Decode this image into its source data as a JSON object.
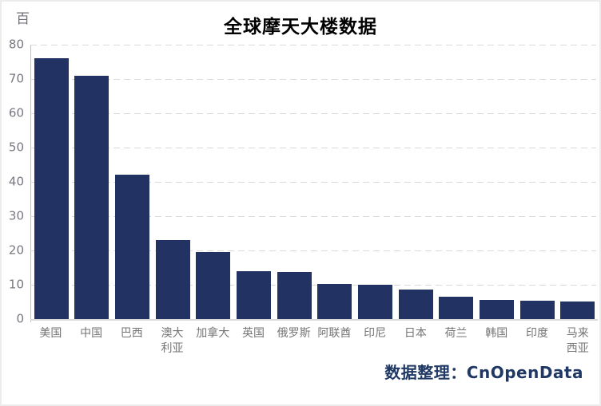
{
  "title": "全球摩天大楼数据",
  "unit_label": "百",
  "credit": "数据整理：CnOpenData",
  "colors": {
    "bar": "#223262",
    "gridline": "#d9d9d9",
    "axis_line": "#bfbfbf",
    "tick_text": "#777780",
    "title_text": "#000000",
    "credit_text": "#1f3864",
    "border": "#ececec",
    "background": "#ffffff"
  },
  "chart_data": {
    "type": "bar",
    "title": "全球摩天大楼数据",
    "unit": "百",
    "categories": [
      "美国",
      "中国",
      "巴西",
      "澳大利亚",
      "加拿大",
      "英国",
      "俄罗斯",
      "阿联酋",
      "印尼",
      "日本",
      "荷兰",
      "韩国",
      "印度",
      "马来西亚"
    ],
    "values": [
      76,
      71,
      42,
      23,
      19.5,
      14,
      13.8,
      10.3,
      9.9,
      8.5,
      6.6,
      5.6,
      5.3,
      5.1
    ],
    "xlabel": "",
    "ylabel": "百",
    "ylim": [
      0,
      80
    ],
    "yticks": [
      0,
      10,
      20,
      30,
      40,
      50,
      60,
      70,
      80
    ],
    "grid": true,
    "grid_style": "dashed",
    "legend": "none",
    "source_note": "数据整理：CnOpenData"
  }
}
